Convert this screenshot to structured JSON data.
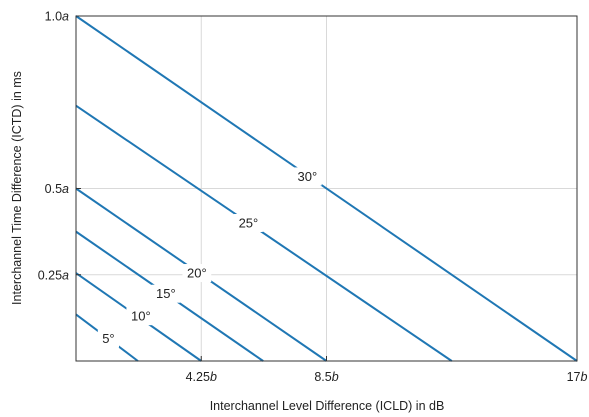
{
  "chart_data": {
    "type": "line",
    "xlabel": "Interchannel Level Difference (ICLD) in dB",
    "ylabel": "Interchannel Time Difference (ICTD) in ms",
    "xlim": [
      0,
      17
    ],
    "ylim": [
      0,
      1.0
    ],
    "grid": true,
    "x_ticks": [
      {
        "value": 4.25,
        "num": "4.25",
        "sym": "b"
      },
      {
        "value": 8.5,
        "num": "8.5",
        "sym": "b"
      },
      {
        "value": 17,
        "num": "17",
        "sym": "b"
      }
    ],
    "y_ticks": [
      {
        "value": 0.25,
        "num": "0.25",
        "sym": "a"
      },
      {
        "value": 0.5,
        "num": "0.5",
        "sym": "a"
      },
      {
        "value": 1.0,
        "num": "1.0",
        "sym": "a"
      }
    ],
    "series": [
      {
        "label": "5°",
        "x": [
          0,
          2.1
        ],
        "y": [
          0.135,
          0
        ],
        "label_at": [
          1.1,
          0.065
        ]
      },
      {
        "label": "10°",
        "x": [
          0,
          4.25
        ],
        "y": [
          0.255,
          0
        ],
        "label_at": [
          2.2,
          0.13
        ]
      },
      {
        "label": "15°",
        "x": [
          0,
          6.35
        ],
        "y": [
          0.375,
          0
        ],
        "label_at": [
          3.05,
          0.195
        ]
      },
      {
        "label": "20°",
        "x": [
          0,
          8.5
        ],
        "y": [
          0.5,
          0
        ],
        "label_at": [
          4.1,
          0.255
        ]
      },
      {
        "label": "25°",
        "x": [
          0,
          12.75
        ],
        "y": [
          0.74,
          0
        ],
        "label_at": [
          5.85,
          0.4
        ]
      },
      {
        "label": "30°",
        "x": [
          0,
          17
        ],
        "y": [
          1.0,
          0
        ],
        "label_at": [
          7.85,
          0.535
        ]
      }
    ]
  },
  "colors": {
    "line": "#1f77b4",
    "grid": "#d9d9d9",
    "axis": "#333333"
  }
}
